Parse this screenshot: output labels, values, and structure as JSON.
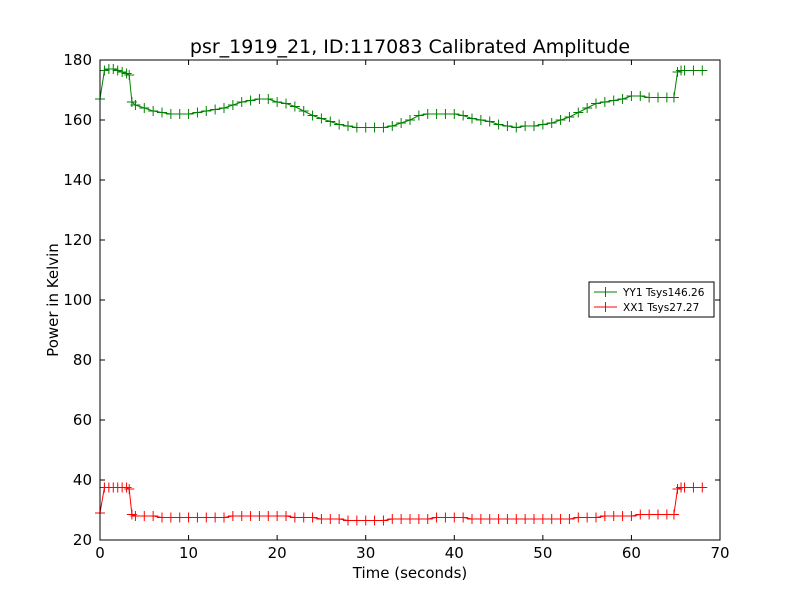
{
  "chart_data": {
    "type": "line",
    "title": "psr_1919_21, ID:117083 Calibrated Amplitude",
    "xlabel": "Time (seconds)",
    "ylabel": "Power in Kelvin",
    "xlim": [
      0,
      70
    ],
    "ylim": [
      20,
      180
    ],
    "xticks": [
      0,
      10,
      20,
      30,
      40,
      50,
      60,
      70
    ],
    "yticks": [
      20,
      40,
      60,
      80,
      100,
      120,
      140,
      160,
      180
    ],
    "grid": false,
    "legend_position": "center-right",
    "marker": "+",
    "series": [
      {
        "name": "YY1 Tsys146.26",
        "color": "#008000",
        "x": [
          0.0,
          0.5,
          1,
          1.5,
          2,
          2.5,
          3,
          3.3,
          3.6,
          4,
          5,
          6,
          7,
          8,
          9,
          10,
          11,
          12,
          13,
          14,
          15,
          16,
          17,
          18,
          19,
          20,
          21,
          22,
          23,
          24,
          25,
          26,
          27,
          28,
          29,
          30,
          31,
          32,
          33,
          34,
          35,
          36,
          37,
          38,
          39,
          40,
          41,
          42,
          43,
          44,
          45,
          46,
          47,
          48,
          49,
          50,
          51,
          52,
          53,
          54,
          55,
          56,
          57,
          58,
          59,
          60,
          61,
          62,
          63,
          64,
          64.8,
          65.2,
          65.6,
          66,
          67,
          68
        ],
        "y": [
          167,
          176.5,
          177,
          177,
          176.5,
          176,
          175.5,
          175,
          166,
          165,
          164,
          163,
          162.5,
          162,
          162,
          162,
          162.5,
          163,
          163.5,
          164,
          165,
          166,
          166.5,
          167,
          167,
          166,
          165.5,
          164.5,
          163,
          161.5,
          160.5,
          159.5,
          158.5,
          158,
          157.5,
          157.5,
          157.5,
          157.5,
          158,
          159,
          160,
          161.5,
          162,
          162,
          162,
          162,
          161.5,
          160.5,
          160,
          159.5,
          158.5,
          158,
          157.5,
          158,
          158,
          158.5,
          159,
          160,
          161,
          162.5,
          164,
          165.5,
          166,
          166.5,
          167,
          168,
          168,
          167.5,
          167.5,
          167.5,
          167.5,
          176,
          176.5,
          176.5,
          176.5,
          176.5
        ]
      },
      {
        "name": "XX1 Tsys27.27",
        "color": "#ff0000",
        "x": [
          0.0,
          0.5,
          1,
          1.5,
          2,
          2.5,
          3,
          3.3,
          3.6,
          4,
          5,
          6,
          7,
          8,
          9,
          10,
          11,
          12,
          13,
          14,
          15,
          16,
          17,
          18,
          19,
          20,
          21,
          22,
          23,
          24,
          25,
          26,
          27,
          28,
          29,
          30,
          31,
          32,
          33,
          34,
          35,
          36,
          37,
          38,
          39,
          40,
          41,
          42,
          43,
          44,
          45,
          46,
          47,
          48,
          49,
          50,
          51,
          52,
          53,
          54,
          55,
          56,
          57,
          58,
          59,
          60,
          61,
          62,
          63,
          64,
          64.8,
          65.2,
          65.6,
          66,
          67,
          68
        ],
        "y": [
          29,
          37.5,
          37.5,
          37.5,
          37.5,
          37.5,
          37.5,
          37,
          28.5,
          28,
          28,
          28,
          27.5,
          27.5,
          27.5,
          27.5,
          27.5,
          27.5,
          27.5,
          27.5,
          28,
          28,
          28,
          28,
          28,
          28,
          28,
          27.5,
          27.5,
          27.5,
          27,
          27,
          27,
          26.5,
          26.5,
          26.5,
          26.5,
          26.5,
          27,
          27,
          27,
          27,
          27,
          27.5,
          27.5,
          27.5,
          27.5,
          27,
          27,
          27,
          27,
          27,
          27,
          27,
          27,
          27,
          27,
          27,
          27,
          27.5,
          27.5,
          27.5,
          28,
          28,
          28,
          28,
          28.5,
          28.5,
          28.5,
          28.5,
          28.5,
          37,
          37.5,
          37.5,
          37.5,
          37.5
        ]
      }
    ]
  }
}
